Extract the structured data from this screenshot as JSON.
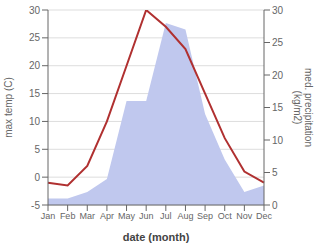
{
  "chart_data": {
    "type": "line",
    "xlabel": "date (month)",
    "ylabel": "max temp (C)",
    "y2label": "med. precipitation\n(kg/m2)",
    "categories": [
      "Jan",
      "Feb",
      "Mar",
      "Apr",
      "May",
      "Jun",
      "Jul",
      "Aug",
      "Sep",
      "Oct",
      "Nov",
      "Dec"
    ],
    "series": [
      {
        "type": "area",
        "axis": "y2",
        "color": "#c0c8ee",
        "values": [
          1,
          1,
          2,
          4,
          16,
          16,
          28,
          27,
          14,
          7,
          2,
          3
        ]
      },
      {
        "type": "line",
        "color": "#b03030",
        "values": [
          -1,
          -1.5,
          2,
          10,
          20,
          30,
          27,
          23,
          15,
          7,
          1,
          -1
        ]
      }
    ],
    "ylim": [
      -5,
      30
    ],
    "yticks": [
      -5,
      0,
      5,
      10,
      15,
      20,
      25,
      30
    ],
    "y2lim": [
      0,
      30
    ],
    "y2ticks": [
      0,
      5,
      10,
      15,
      20,
      25,
      30
    ],
    "grid": true
  }
}
